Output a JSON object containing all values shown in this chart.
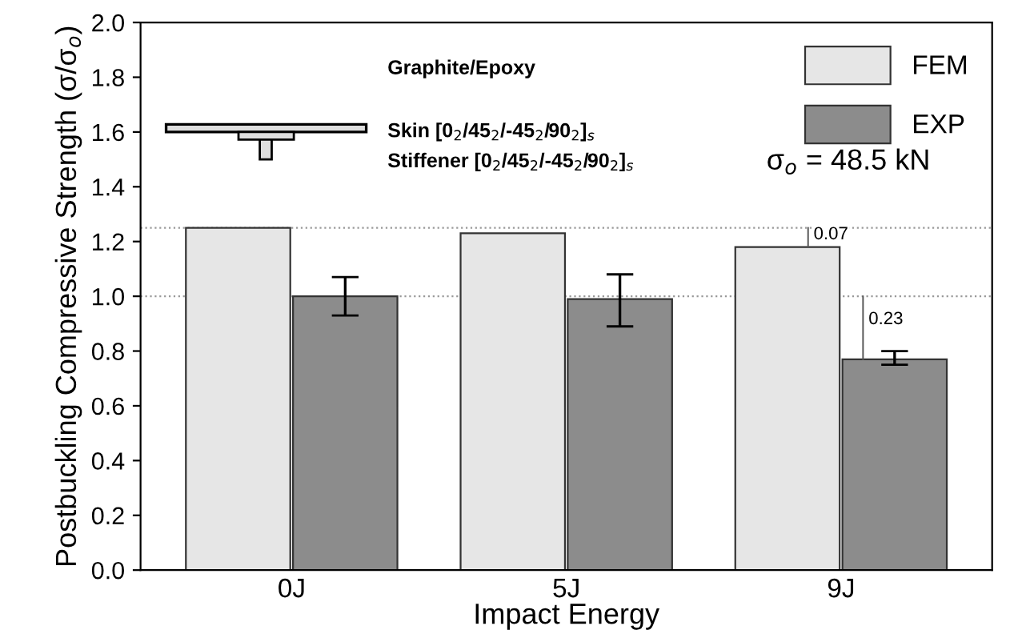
{
  "chart_data": {
    "type": "bar",
    "xlabel": "Impact Energy",
    "ylabel": "Postbuckling Compressive Strength (σ/σ$_{o}$)",
    "categories": [
      "0J",
      "5J",
      "9J"
    ],
    "series": [
      {
        "name": "FEM",
        "color": "#e6e6e6",
        "values": [
          1.25,
          1.23,
          1.18
        ]
      },
      {
        "name": "EXP",
        "color": "#8c8c8c",
        "values": [
          1.0,
          0.99,
          0.77
        ],
        "errors": [
          [
            0.93,
            1.07
          ],
          [
            0.89,
            1.08
          ],
          [
            0.75,
            0.8
          ]
        ]
      }
    ],
    "ylim": [
      0,
      2.0
    ],
    "yticks": [
      {
        "value": 0,
        "label": "0.0"
      },
      {
        "value": 0.2,
        "label": "0.2"
      },
      {
        "value": 0.4,
        "label": "0.4"
      },
      {
        "value": 0.6,
        "label": "0.6"
      },
      {
        "value": 0.8,
        "label": "0.8"
      },
      {
        "value": 1.0,
        "label": "1.0"
      },
      {
        "value": 1.2,
        "label": "1.2"
      },
      {
        "value": 1.4,
        "label": "1.4"
      },
      {
        "value": 1.6,
        "label": "1.6"
      },
      {
        "value": 1.8,
        "label": "1.8"
      },
      {
        "value": 2.0,
        "label": "2.0"
      }
    ],
    "ref_lines": [
      {
        "axis": "y",
        "value": 1.25,
        "color": "#999999",
        "line_style": "dotted"
      },
      {
        "axis": "y",
        "value": 1.0,
        "color": "#999999",
        "line_style": "dotted"
      }
    ],
    "legend": "top right",
    "grid": false,
    "annotations": [
      "Graphite/Epoxy",
      "Skin [0$_{2}$/45$_{2}$/-45$_{2}$/90$_{2}$]$_{s}$",
      "Stiffener [0$_{2}$/45$_{2}$/-45$_{2}$/90$_{2}$]$_{s}$",
      "σ$_{o}$ = 48.5 kN",
      "0.07",
      "0.23"
    ]
  }
}
